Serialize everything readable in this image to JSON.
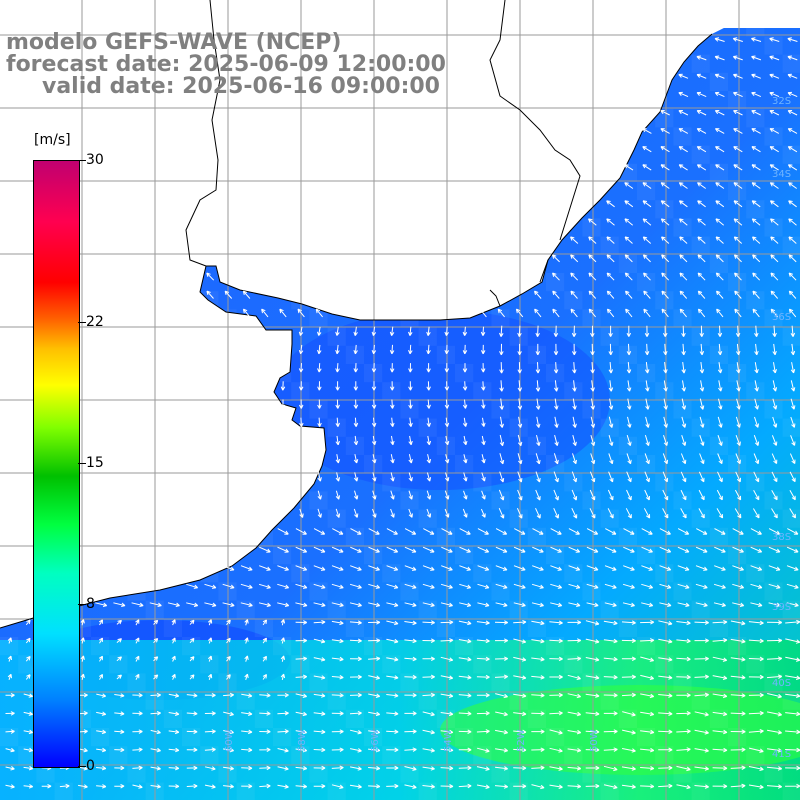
{
  "title": {
    "model": "modelo GEFS-WAVE (NCEP)",
    "forecast": "forecast date: 2025-06-09 12:00:00",
    "valid": "valid date: 2025-06-16 09:00:00"
  },
  "colorbar": {
    "unit": "[m/s]",
    "ticks": [
      "30",
      "22",
      "15",
      "8",
      "0"
    ],
    "tick_values": [
      30,
      22,
      15,
      8,
      0
    ],
    "range": [
      0,
      30
    ]
  },
  "map": {
    "variable": "wind speed and direction",
    "lon_labels": [
      "60W",
      "58W",
      "56W",
      "54W",
      "52W",
      "50W"
    ],
    "lat_labels": [
      "32S",
      "34S",
      "36S",
      "38S",
      "39S",
      "40S",
      "41S"
    ],
    "colors": {
      "land": "#ffffff",
      "coast": "#000000",
      "grid": "#a0a0a0",
      "arrow": "#ffffff",
      "text": "#808080"
    }
  }
}
